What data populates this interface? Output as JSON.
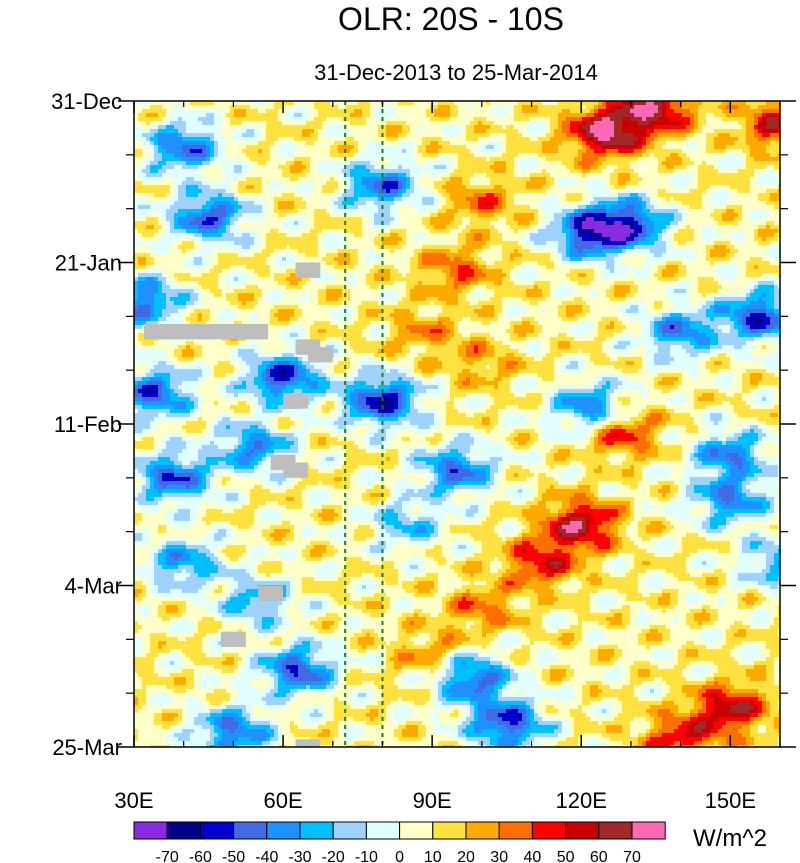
{
  "chart_data": {
    "type": "heatmap",
    "title": "OLR: 20S - 10S",
    "subtitle": "31-Dec-2013 to 25-Mar-2014",
    "xlabel": "",
    "ylabel": "",
    "x_tick_labels": [
      {
        "label": "30E",
        "value": 30
      },
      {
        "label": "60E",
        "value": 60
      },
      {
        "label": "90E",
        "value": 90
      },
      {
        "label": "120E",
        "value": 120
      },
      {
        "label": "150E",
        "value": 150
      }
    ],
    "y_tick_labels": [
      {
        "label": "31-Dec",
        "value": 0
      },
      {
        "label": "21-Jan",
        "value": 21
      },
      {
        "label": "11-Feb",
        "value": 42
      },
      {
        "label": "4-Mar",
        "value": 63
      },
      {
        "label": "25-Mar",
        "value": 84
      }
    ],
    "xlim": [
      30,
      160
    ],
    "ylim_days": [
      0,
      84
    ],
    "reference_lines_lon": [
      72.5,
      80
    ],
    "colorbar": {
      "units": "W/m^2",
      "levels": [
        -70,
        -60,
        -50,
        -40,
        -30,
        -20,
        -10,
        0,
        10,
        20,
        30,
        40,
        50,
        60,
        70
      ],
      "level_labels": [
        "-70",
        "-60",
        "-50",
        "-40",
        "-30",
        "-20",
        "-10",
        "0",
        "10",
        "20",
        "30",
        "40",
        "50",
        "60",
        "70"
      ],
      "colors": [
        "#8a2be2",
        "#00008b",
        "#0000cd",
        "#4169e1",
        "#1e90ff",
        "#00bfff",
        "#a0d2ff",
        "#e1ffff",
        "#ffffc8",
        "#ffe141",
        "#ffaa00",
        "#ff6e00",
        "#ff0000",
        "#c80000",
        "#a02828",
        "#ff69b4"
      ]
    },
    "missing_color": "#bebebe",
    "anomaly_features": [
      {
        "lon": 125,
        "day": 4,
        "value": 65
      },
      {
        "lon": 135,
        "day": 1,
        "value": 55
      },
      {
        "lon": 160,
        "day": 3,
        "value": 45
      },
      {
        "lon": 100,
        "day": 13,
        "value": 25
      },
      {
        "lon": 95,
        "day": 22,
        "value": 28
      },
      {
        "lon": 88,
        "day": 30,
        "value": 20
      },
      {
        "lon": 100,
        "day": 34,
        "value": 18
      },
      {
        "lon": 120,
        "day": 55,
        "value": 55
      },
      {
        "lon": 112,
        "day": 60,
        "value": 40
      },
      {
        "lon": 100,
        "day": 66,
        "value": 25
      },
      {
        "lon": 90,
        "day": 72,
        "value": 22
      },
      {
        "lon": 150,
        "day": 79,
        "value": 50
      },
      {
        "lon": 140,
        "day": 83,
        "value": 40
      },
      {
        "lon": 128,
        "day": 43,
        "value": 40
      },
      {
        "lon": 122,
        "day": 17,
        "value": -65
      },
      {
        "lon": 130,
        "day": 16,
        "value": -55
      },
      {
        "lon": 156,
        "day": 28,
        "value": -60
      },
      {
        "lon": 140,
        "day": 30,
        "value": -45
      },
      {
        "lon": 80,
        "day": 39,
        "value": -65
      },
      {
        "lon": 60,
        "day": 36,
        "value": -60
      },
      {
        "lon": 45,
        "day": 15,
        "value": -55
      },
      {
        "lon": 40,
        "day": 6,
        "value": -50
      },
      {
        "lon": 38,
        "day": 49,
        "value": -55
      },
      {
        "lon": 34,
        "day": 38,
        "value": -55
      },
      {
        "lon": 54,
        "day": 45,
        "value": -45
      },
      {
        "lon": 32,
        "day": 26,
        "value": -50
      },
      {
        "lon": 105,
        "day": 81,
        "value": -60
      },
      {
        "lon": 98,
        "day": 75,
        "value": -55
      },
      {
        "lon": 63,
        "day": 74,
        "value": -55
      },
      {
        "lon": 50,
        "day": 82,
        "value": -50
      },
      {
        "lon": 95,
        "day": 48,
        "value": -50
      },
      {
        "lon": 150,
        "day": 52,
        "value": -45
      },
      {
        "lon": 122,
        "day": 40,
        "value": -50
      },
      {
        "lon": 150,
        "day": 46,
        "value": -45
      },
      {
        "lon": 160,
        "day": 60,
        "value": -35
      },
      {
        "lon": 80,
        "day": 11,
        "value": -50
      },
      {
        "lon": 40,
        "day": 60,
        "value": -40
      },
      {
        "lon": 55,
        "day": 65,
        "value": -35
      },
      {
        "lon": 85,
        "day": 55,
        "value": -30
      }
    ],
    "missing_blocks": [
      {
        "lon0": 32,
        "lon1": 57,
        "day0": 29,
        "day1": 31
      },
      {
        "lon0": 62.5,
        "lon1": 67.5,
        "day0": 21,
        "day1": 23
      },
      {
        "lon0": 62.5,
        "lon1": 67.5,
        "day0": 31,
        "day1": 33
      },
      {
        "lon0": 65,
        "lon1": 70,
        "day0": 32,
        "day1": 34
      },
      {
        "lon0": 60,
        "lon1": 65,
        "day0": 38,
        "day1": 40
      },
      {
        "lon0": 57.5,
        "lon1": 62.5,
        "day0": 46,
        "day1": 48
      },
      {
        "lon0": 60,
        "lon1": 65,
        "day0": 47,
        "day1": 49
      },
      {
        "lon0": 55,
        "lon1": 60,
        "day0": 63,
        "day1": 65
      },
      {
        "lon0": 47.5,
        "lon1": 52.5,
        "day0": 69,
        "day1": 71
      },
      {
        "lon0": 62.5,
        "lon1": 67.5,
        "day0": 83,
        "day1": 84
      }
    ]
  }
}
